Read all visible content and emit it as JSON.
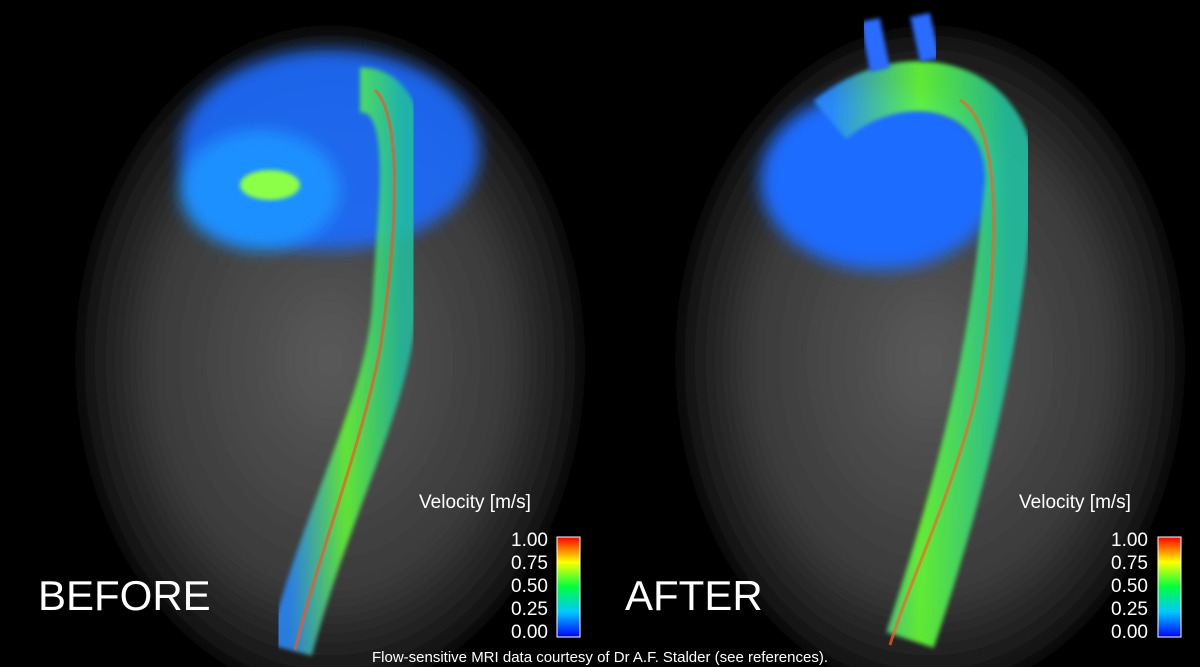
{
  "panels": [
    {
      "label": "BEFORE",
      "colorbar": {
        "title": "Velocity [m/s]",
        "ticks": [
          "1.00",
          "0.75",
          "0.50",
          "0.25",
          "0.00"
        ]
      }
    },
    {
      "label": "AFTER",
      "colorbar": {
        "title": "Velocity [m/s]",
        "ticks": [
          "1.00",
          "0.75",
          "0.50",
          "0.25",
          "0.00"
        ]
      }
    }
  ],
  "caption": "Flow-sensitive MRI data courtesy of Dr A.F. Stalder (see references)."
}
